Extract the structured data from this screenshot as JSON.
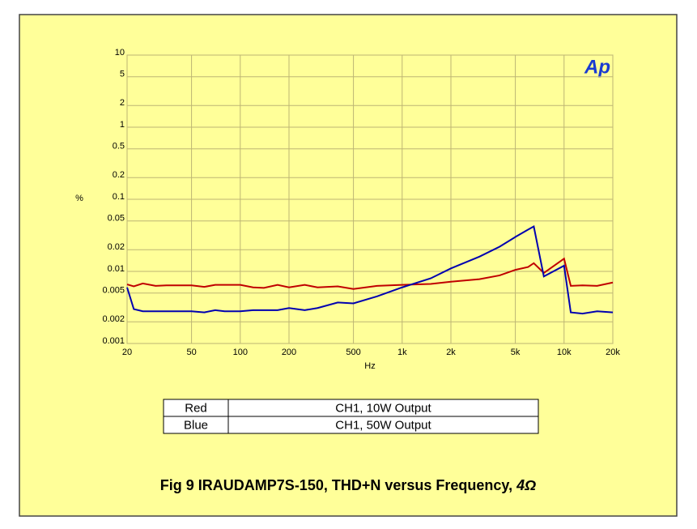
{
  "chart_data": {
    "type": "line",
    "title": "Fig 9  IRAUDAMP7S-150, THD+N versus Frequency,",
    "title_emphasis": "4Ω",
    "logo": "Ap",
    "x_label": "Hz",
    "y_label": "%",
    "x_log": true,
    "y_log": true,
    "grid": true,
    "xlim": [
      20,
      20000
    ],
    "ylim": [
      0.001,
      10
    ],
    "xticks": [
      20,
      50,
      100,
      200,
      500,
      {
        "value": 1000,
        "label": "1k"
      },
      {
        "value": 2000,
        "label": "2k"
      },
      {
        "value": 5000,
        "label": "5k"
      },
      {
        "value": 10000,
        "label": "10k"
      },
      {
        "value": 20000,
        "label": "20k"
      }
    ],
    "yticks": [
      0.001,
      0.002,
      0.005,
      0.01,
      0.02,
      0.05,
      0.1,
      0.2,
      0.5,
      1,
      2,
      5,
      10
    ],
    "x": [
      20,
      22,
      25,
      30,
      35,
      40,
      50,
      60,
      70,
      80,
      100,
      120,
      140,
      170,
      200,
      250,
      300,
      400,
      500,
      700,
      1000,
      1500,
      2000,
      3000,
      4000,
      5000,
      6000,
      6500,
      7500,
      10000,
      11000,
      13000,
      16000,
      20000
    ],
    "series": [
      {
        "name": "CH1, 10W Output",
        "color_label": "Red",
        "color": "#c00000",
        "values": [
          0.0066,
          0.0062,
          0.0068,
          0.0063,
          0.0064,
          0.0064,
          0.0064,
          0.0061,
          0.0065,
          0.0065,
          0.0065,
          0.006,
          0.0059,
          0.0065,
          0.006,
          0.0065,
          0.006,
          0.0062,
          0.0057,
          0.0063,
          0.0065,
          0.0067,
          0.0072,
          0.0078,
          0.0088,
          0.0105,
          0.0115,
          0.013,
          0.0095,
          0.015,
          0.0063,
          0.0064,
          0.0063,
          0.007
        ]
      },
      {
        "name": "CH1, 50W Output",
        "color_label": "Blue",
        "color": "#0000b0",
        "values": [
          0.006,
          0.003,
          0.0028,
          0.0028,
          0.0028,
          0.0028,
          0.0028,
          0.0027,
          0.0029,
          0.0028,
          0.0028,
          0.0029,
          0.0029,
          0.0029,
          0.0031,
          0.0029,
          0.0031,
          0.0037,
          0.0036,
          0.0045,
          0.006,
          0.008,
          0.011,
          0.016,
          0.022,
          0.03,
          0.038,
          0.042,
          0.0085,
          0.012,
          0.0027,
          0.0026,
          0.0028,
          0.0027
        ]
      }
    ]
  }
}
